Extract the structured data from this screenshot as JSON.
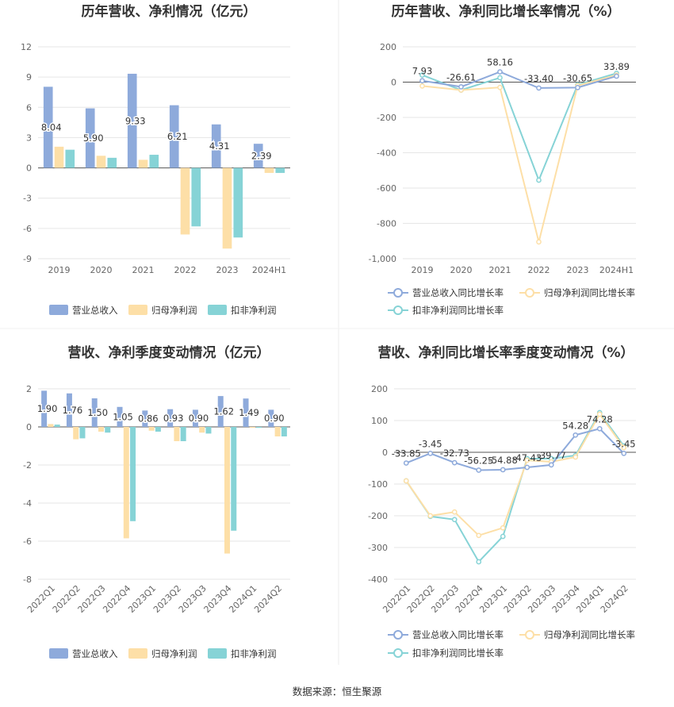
{
  "colors": {
    "revenue": "#8eaadb",
    "net_profit": "#fddfa7",
    "deducted_profit": "#86d3d6",
    "revenue_line": "#8eaadb",
    "net_profit_line": "#fddfa7",
    "deducted_profit_line": "#86d3d6"
  },
  "source_text": "数据来源：恒生聚源",
  "chart_data": [
    {
      "type": "bar",
      "title": "历年营收、净利情况（亿元）",
      "categories": [
        "2019",
        "2020",
        "2021",
        "2022",
        "2023",
        "2024H1"
      ],
      "ylim": [
        -9,
        12
      ],
      "yticks": [
        12,
        9,
        6,
        3,
        0,
        -3,
        -6,
        -9
      ],
      "grid": true,
      "legend": "bottom",
      "series": [
        {
          "name": "营业总收入",
          "values": [
            8.04,
            5.9,
            9.33,
            6.21,
            4.31,
            2.39
          ],
          "labels": [
            "8.04",
            "5.90",
            "9.33",
            "6.21",
            "4.31",
            "2.39"
          ]
        },
        {
          "name": "归母净利润",
          "values": [
            2.1,
            1.2,
            0.8,
            -6.6,
            -8.0,
            -0.5
          ]
        },
        {
          "name": "扣非净利润",
          "values": [
            1.8,
            1.0,
            1.3,
            -5.8,
            -6.9,
            -0.5
          ]
        }
      ]
    },
    {
      "type": "line",
      "title": "历年营收、净利同比增长率情况（%）",
      "categories": [
        "2019",
        "2020",
        "2021",
        "2022",
        "2023",
        "2024H1"
      ],
      "ylim": [
        -1000,
        200
      ],
      "yticks": [
        200,
        0,
        -200,
        -400,
        -600,
        -800,
        -1000
      ],
      "ytick_labels": [
        "200",
        "0",
        "-200",
        "-400",
        "-600",
        "-800",
        "-1,000"
      ],
      "grid": true,
      "legend": "bottom",
      "series": [
        {
          "name": "营业总收入同比增长率",
          "values": [
            7.93,
            -26.61,
            58.16,
            -33.4,
            -30.65,
            33.89
          ],
          "labels": [
            "7.93",
            "-26.61",
            "58.16",
            "-33.40",
            "-30.65",
            "33.89"
          ]
        },
        {
          "name": "归母净利润同比增长率",
          "values": [
            -22,
            -45,
            -30,
            -905,
            -20,
            40
          ]
        },
        {
          "name": "扣非净利润同比增长率",
          "values": [
            40,
            -45,
            25,
            -555,
            -15,
            50
          ]
        }
      ]
    },
    {
      "type": "bar",
      "title": "营收、净利季度变动情况（亿元）",
      "categories": [
        "2022Q1",
        "2022Q2",
        "2022Q3",
        "2022Q4",
        "2023Q1",
        "2023Q2",
        "2023Q3",
        "2023Q4",
        "2024Q1",
        "2024Q2"
      ],
      "ylim": [
        -8,
        2
      ],
      "yticks": [
        2,
        0,
        -2,
        -4,
        -6,
        -8
      ],
      "grid": true,
      "legend": "bottom",
      "series": [
        {
          "name": "营业总收入",
          "values": [
            1.9,
            1.76,
            1.5,
            1.05,
            0.86,
            0.93,
            0.9,
            1.62,
            1.49,
            0.9
          ],
          "labels": [
            "1.90",
            "1.76",
            "1.50",
            "1.05",
            "0.86",
            "0.93",
            "0.90",
            "1.62",
            "1.49",
            "0.90"
          ]
        },
        {
          "name": "归母净利润",
          "values": [
            0.15,
            -0.65,
            -0.25,
            -5.85,
            -0.2,
            -0.75,
            -0.3,
            -6.65,
            -0.05,
            -0.5
          ]
        },
        {
          "name": "扣非净利润",
          "values": [
            0.12,
            -0.6,
            -0.3,
            -4.95,
            -0.25,
            -0.75,
            -0.35,
            -5.45,
            -0.05,
            -0.5
          ]
        }
      ]
    },
    {
      "type": "line",
      "title": "营收、净利同比增长率季度变动情况（%）",
      "categories": [
        "2022Q1",
        "2022Q2",
        "2022Q3",
        "2022Q4",
        "2023Q1",
        "2023Q2",
        "2023Q3",
        "2023Q4",
        "2024Q1",
        "2024Q2"
      ],
      "ylim": [
        -400,
        200
      ],
      "yticks": [
        200,
        100,
        0,
        -100,
        -200,
        -300,
        -400
      ],
      "grid": true,
      "legend": "bottom",
      "series": [
        {
          "name": "营业总收入同比增长率",
          "values": [
            -33.85,
            -3.45,
            -32.73,
            -56.25,
            -54.88,
            -47.43,
            -39.77,
            54.28,
            74.28,
            -3.45
          ],
          "labels": [
            "-33.85",
            "-3.45",
            "-32.73",
            "-56.25",
            "-54.88",
            "-47.43",
            "-39.77",
            "54.28",
            "74.28",
            "-3.45"
          ]
        },
        {
          "name": "归母净利润同比增长率",
          "values": [
            -90,
            -200,
            -188,
            -262,
            -238,
            -25,
            -30,
            -15,
            120,
            15
          ]
        },
        {
          "name": "扣非净利润同比增长率",
          "values": [
            -90,
            -202,
            -212,
            -345,
            -265,
            -20,
            -20,
            -10,
            125,
            20
          ]
        }
      ]
    }
  ]
}
